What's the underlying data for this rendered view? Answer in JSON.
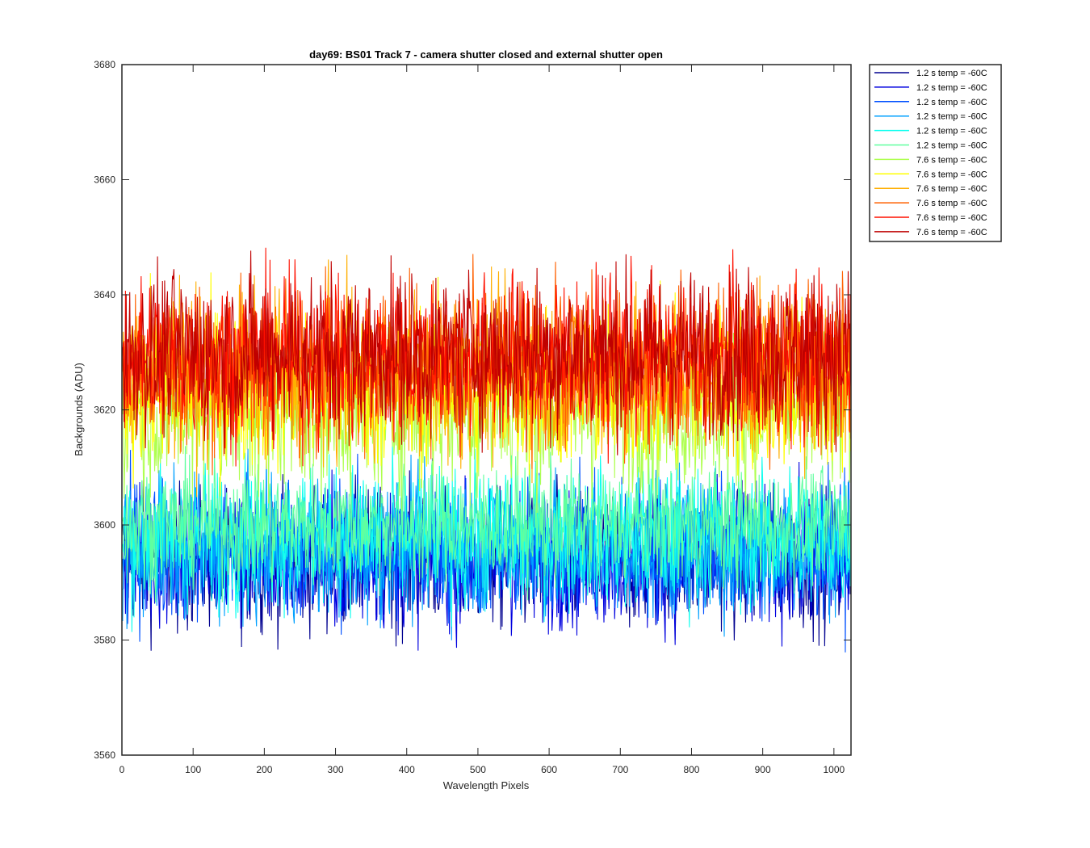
{
  "chart_data": {
    "type": "line",
    "title": "day69: BS01  Track 7 - camera shutter closed and external shutter open",
    "xlabel": "Wavelength Pixels",
    "ylabel": "Backgrounds (ADU)",
    "xlim": [
      0,
      1024
    ],
    "ylim": [
      3560,
      3680
    ],
    "xticks": [
      0,
      100,
      200,
      300,
      400,
      500,
      600,
      700,
      800,
      900,
      1000
    ],
    "yticks": [
      3560,
      3580,
      3600,
      3620,
      3640,
      3660,
      3680
    ],
    "grid": false,
    "legend_position": "outside top-right",
    "n_points": 1024,
    "series": [
      {
        "name": "1.2 s temp = -60C",
        "color": "#00008f",
        "mean": 3594,
        "spread": 6
      },
      {
        "name": "1.2 s temp = -60C",
        "color": "#0000df",
        "mean": 3594,
        "spread": 6
      },
      {
        "name": "1.2 s temp = -60C",
        "color": "#0050ff",
        "mean": 3596,
        "spread": 6
      },
      {
        "name": "1.2 s temp = -60C",
        "color": "#00a0ff",
        "mean": 3596,
        "spread": 6
      },
      {
        "name": "1.2 s temp = -60C",
        "color": "#10ffef",
        "mean": 3598,
        "spread": 6
      },
      {
        "name": "1.2 s temp = -60C",
        "color": "#60ff9f",
        "mean": 3600,
        "spread": 5
      },
      {
        "name": "7.6 s temp = -60C",
        "color": "#afff50",
        "mean": 3620,
        "spread": 7
      },
      {
        "name": "7.6 s temp = -60C",
        "color": "#ffff00",
        "mean": 3624,
        "spread": 7
      },
      {
        "name": "7.6 s temp = -60C",
        "color": "#ffaf00",
        "mean": 3626,
        "spread": 7
      },
      {
        "name": "7.6 s temp = -60C",
        "color": "#ff6000",
        "mean": 3628,
        "spread": 7
      },
      {
        "name": "7.6 s temp = -60C",
        "color": "#ff1000",
        "mean": 3629,
        "spread": 7
      },
      {
        "name": "7.6 s temp = -60C",
        "color": "#bf0000",
        "mean": 3630,
        "spread": 7
      }
    ]
  }
}
